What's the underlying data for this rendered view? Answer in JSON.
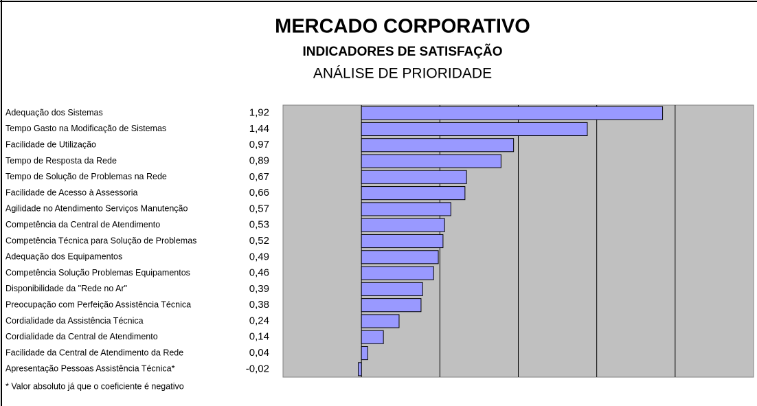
{
  "chart_data": {
    "type": "barh",
    "title": "MERCADO CORPORATIVO",
    "subtitle": "INDICADORES DE SATISFAÇÃO",
    "subtitle2": "ANÁLISE DE PRIORIDADE",
    "categories": [
      "Adequação dos Sistemas",
      "Tempo Gasto na Modificação de Sistemas",
      "Facilidade de Utilização",
      "Tempo de Resposta da Rede",
      "Tempo de Solução de Problemas na Rede",
      "Facilidade de Acesso à Assessoria",
      "Agilidade no Atendimento Serviços Manutenção",
      "Competência da Central de Atendimento",
      "Competência Técnica para Solução de Problemas",
      "Adequação dos Equipamentos",
      "Competência Solução Problemas Equipamentos",
      "Disponibilidade da \"Rede no Ar\"",
      "Preocupação com Perfeição Assistência Técnica",
      "Cordialidade da Assistência Técnica",
      "Cordialidade da Central de Atendimento",
      "Facilidade da Central de Atendimento da Rede",
      "Apresentação Pessoas Assistência Técnica*"
    ],
    "values": [
      1.92,
      1.44,
      0.97,
      0.89,
      0.67,
      0.66,
      0.57,
      0.53,
      0.52,
      0.49,
      0.46,
      0.39,
      0.38,
      0.24,
      0.14,
      0.04,
      -0.02
    ],
    "value_labels": [
      "1,92",
      "1,44",
      "0,97",
      "0,89",
      "0,67",
      "0,66",
      "0,57",
      "0,53",
      "0,52",
      "0,49",
      "0,46",
      "0,39",
      "0,38",
      "0,24",
      "0,14",
      "0,04",
      "-0,02"
    ],
    "color": "#9999ff",
    "xlim": [
      -0.5,
      2.5
    ],
    "xticks": [
      0,
      0.5,
      1,
      1.5,
      2
    ],
    "grid": true,
    "footnote": "* Valor absoluto já que o coeficiente é negativo"
  }
}
